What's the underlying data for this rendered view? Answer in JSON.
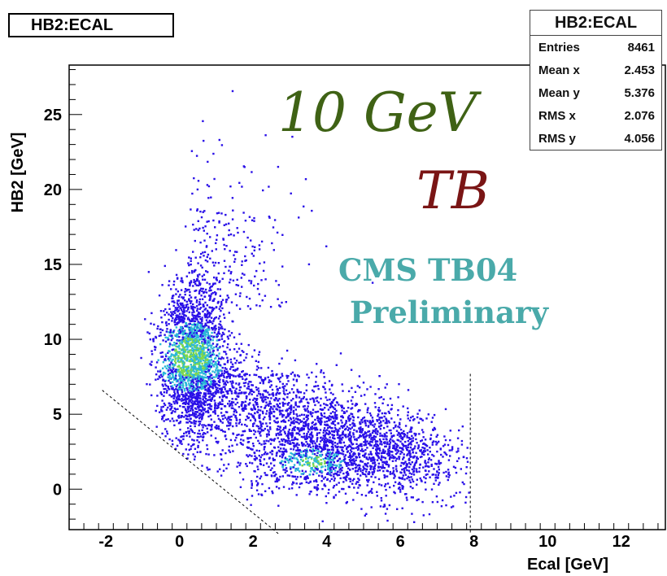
{
  "chart_data": {
    "type": "scatter",
    "title": "HB2:ECAL",
    "xlabel": "Ecal [GeV]",
    "ylabel": "HB2 [GeV]",
    "xlim": [
      -3,
      13.2
    ],
    "ylim": [
      -2.7,
      28.3
    ],
    "xticks": [
      -2,
      0,
      2,
      4,
      6,
      8,
      10,
      12
    ],
    "yticks": [
      0,
      5,
      10,
      15,
      20,
      25
    ],
    "grid": false,
    "stats": [
      {
        "label": "Entries",
        "value": "8461"
      },
      {
        "label": "Mean x",
        "value": "2.453"
      },
      {
        "label": "Mean y",
        "value": "5.376"
      },
      {
        "label": "RMS x",
        "value": "2.076"
      },
      {
        "label": "RMS y",
        "value": "4.056"
      }
    ],
    "annotations": [
      "10 GeV",
      "TB",
      "CMS TB04",
      "Preliminary"
    ],
    "cut_lines": [
      {
        "x1": -2.1,
        "y1": 6.6,
        "x2": 2.7,
        "y2": -3.0
      },
      {
        "x1": 7.9,
        "y1": 7.7,
        "x2": 7.9,
        "y2": -3.0
      }
    ],
    "dense_regions": [
      {
        "x": 0.3,
        "y": 8.8,
        "level": "high"
      },
      {
        "x": 3.6,
        "y": 1.8,
        "level": "medium"
      }
    ]
  },
  "colors": {
    "points_low": "#2a10e8",
    "points_mid": "#2ab8d8",
    "points_high": "#7ed84a",
    "energy_text": "#3f6215",
    "tb_text": "#7a1515",
    "prelim_text": "#4aaaaa"
  }
}
